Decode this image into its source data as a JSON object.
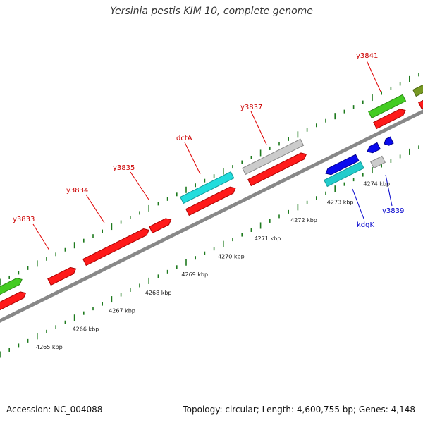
{
  "title": "Yersinia pestis KIM 10, complete genome",
  "footer": {
    "accession": "Accession: NC_004088",
    "summary": "Topology: circular; Length: 4,600,755 bp; Genes: 4,148"
  },
  "colors": {
    "red": "#ff1a1a",
    "green": "#44cc22",
    "cyan": "#22dddd",
    "gray": "#cccccc",
    "blue": "#0a0aee",
    "olive": "#779922",
    "backbone": "#888888",
    "tick": "#1e7a1e",
    "label_red": "#cc0000",
    "label_blue": "#0000cc"
  },
  "kbp_labels": [
    "4265 kbp",
    "4266 kbp",
    "4267 kbp",
    "4268 kbp",
    "4269 kbp",
    "4270 kbp",
    "4271 kbp",
    "4272 kbp",
    "4273 kbp",
    "4274 kbp"
  ],
  "gene_labels": [
    {
      "text": "y3833",
      "color": "red"
    },
    {
      "text": "y3834",
      "color": "red"
    },
    {
      "text": "y3835",
      "color": "red"
    },
    {
      "text": "dctA",
      "color": "red"
    },
    {
      "text": "y3837",
      "color": "red"
    },
    {
      "text": "y3841",
      "color": "red"
    },
    {
      "text": "kdgK",
      "color": "blue"
    },
    {
      "text": "y3839",
      "color": "blue"
    }
  ]
}
